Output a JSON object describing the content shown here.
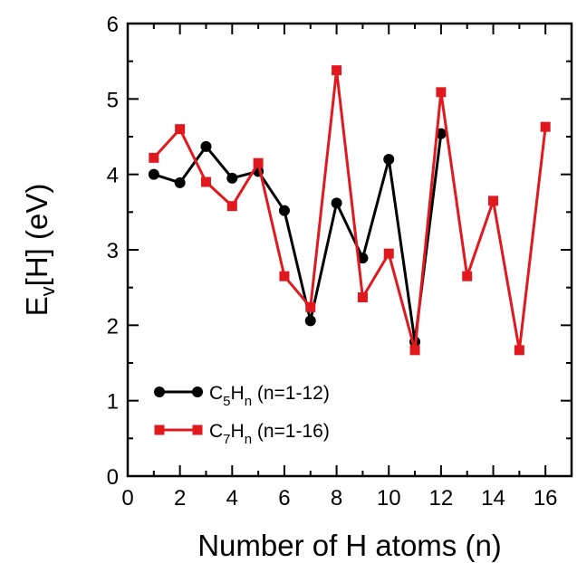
{
  "chart_data": {
    "type": "line",
    "xlabel": "Number of H atoms (n)",
    "ylabel": {
      "main": "E",
      "sub": "v",
      "rest": "[H] (eV)"
    },
    "xlim": [
      0,
      17
    ],
    "ylim": [
      0,
      6
    ],
    "xticks": [
      0,
      2,
      4,
      6,
      8,
      10,
      12,
      14,
      16
    ],
    "yticks": [
      0,
      1,
      2,
      3,
      4,
      5,
      6
    ],
    "grid": false,
    "legend_position": "lower-left",
    "series": [
      {
        "name": "C5Hn (n=1-12)",
        "legend": {
          "c": "C",
          "c_sub": "5",
          "h": "H",
          "h_sub": "n",
          "rest": " (n=1-12)"
        },
        "color": "#000000",
        "marker": "circle",
        "x": [
          1,
          2,
          3,
          4,
          5,
          6,
          7,
          8,
          9,
          10,
          11,
          12
        ],
        "y": [
          4.0,
          3.89,
          4.37,
          3.95,
          4.04,
          3.52,
          2.06,
          3.62,
          2.89,
          4.2,
          1.78,
          4.54
        ]
      },
      {
        "name": "C7Hn (n=1-16)",
        "legend": {
          "c": "C",
          "c_sub": "7",
          "h": "H",
          "h_sub": "n",
          "rest": " (n=1-16)"
        },
        "color": "#e0191f",
        "marker": "square",
        "x": [
          1,
          2,
          3,
          4,
          5,
          6,
          7,
          8,
          9,
          10,
          11,
          12,
          13,
          14,
          15,
          16
        ],
        "y": [
          4.22,
          4.6,
          3.9,
          3.58,
          4.15,
          2.65,
          2.24,
          5.38,
          2.37,
          2.95,
          1.67,
          5.09,
          2.65,
          3.65,
          1.67,
          4.63
        ]
      }
    ]
  }
}
